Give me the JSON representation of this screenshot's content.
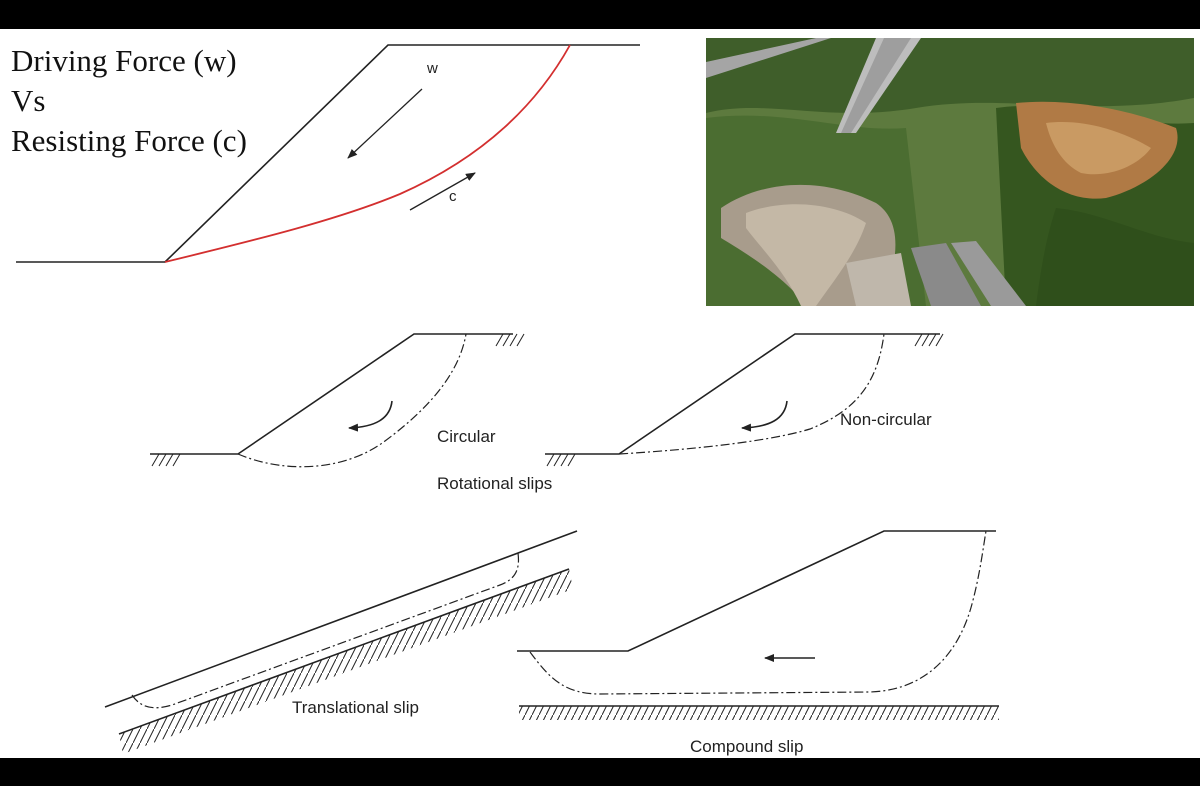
{
  "heading": {
    "line1": "Driving Force (w)",
    "line2": "Vs",
    "line3": "Resisting Force (c)"
  },
  "force_diagram": {
    "driving_label": "w",
    "resisting_label": "c",
    "slip_color": "#d32f2f"
  },
  "rotational": {
    "circular_label": "Circular",
    "noncircular_label": "Non-circular",
    "caption": "Rotational slips"
  },
  "translational": {
    "caption": "Translational slip"
  },
  "compound": {
    "caption": "Compound slip"
  }
}
